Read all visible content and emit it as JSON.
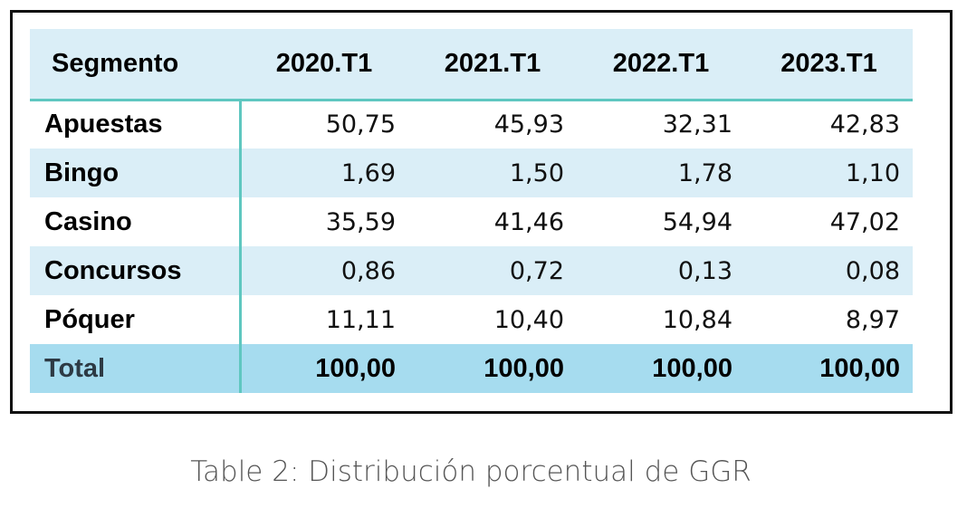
{
  "table": {
    "header": {
      "segment_label": "Segmento",
      "periods": [
        "2020.T1",
        "2021.T1",
        "2022.T1",
        "2023.T1"
      ]
    },
    "rows": [
      {
        "label": "Apuestas",
        "values": [
          "50,75",
          "45,93",
          "32,31",
          "42,83"
        ]
      },
      {
        "label": "Bingo",
        "values": [
          "1,69",
          "1,50",
          "1,78",
          "1,10"
        ]
      },
      {
        "label": "Casino",
        "values": [
          "35,59",
          "41,46",
          "54,94",
          "47,02"
        ]
      },
      {
        "label": "Concursos",
        "values": [
          "0,86",
          "0,72",
          "0,13",
          "0,08"
        ]
      },
      {
        "label": "Póquer",
        "values": [
          "11,11",
          "10,40",
          "10,84",
          "8,97"
        ]
      }
    ],
    "total": {
      "label": "Total",
      "values": [
        "100,00",
        "100,00",
        "100,00",
        "100,00"
      ]
    }
  },
  "caption": "Table 2: Distribución porcentual de GGR",
  "colors": {
    "band": "#daeef7",
    "total_band": "#a6dcef",
    "rule": "#5fc7c0",
    "frame": "#111111"
  }
}
